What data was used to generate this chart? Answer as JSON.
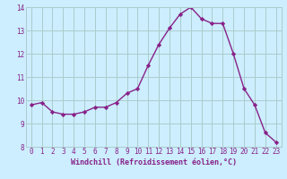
{
  "x": [
    0,
    1,
    2,
    3,
    4,
    5,
    6,
    7,
    8,
    9,
    10,
    11,
    12,
    13,
    14,
    15,
    16,
    17,
    18,
    19,
    20,
    21,
    22,
    23
  ],
  "y": [
    9.8,
    9.9,
    9.5,
    9.4,
    9.4,
    9.5,
    9.7,
    9.7,
    9.9,
    10.3,
    10.5,
    11.5,
    12.4,
    13.1,
    13.7,
    14.0,
    13.5,
    13.3,
    13.3,
    12.0,
    10.5,
    9.8,
    8.6,
    8.2
  ],
  "line_color": "#882288",
  "marker": "D",
  "markersize": 2.2,
  "linewidth": 1.0,
  "xlabel": "Windchill (Refroidissement éolien,°C)",
  "xlabel_fontsize": 6.0,
  "background_color": "#cceeff",
  "grid_color": "#aacccc",
  "ylim": [
    8,
    14
  ],
  "xlim": [
    -0.5,
    23.5
  ],
  "yticks": [
    8,
    9,
    10,
    11,
    12,
    13,
    14
  ],
  "xticks": [
    0,
    1,
    2,
    3,
    4,
    5,
    6,
    7,
    8,
    9,
    10,
    11,
    12,
    13,
    14,
    15,
    16,
    17,
    18,
    19,
    20,
    21,
    22,
    23
  ],
  "tick_fontsize": 5.5,
  "tick_color": "#882288"
}
